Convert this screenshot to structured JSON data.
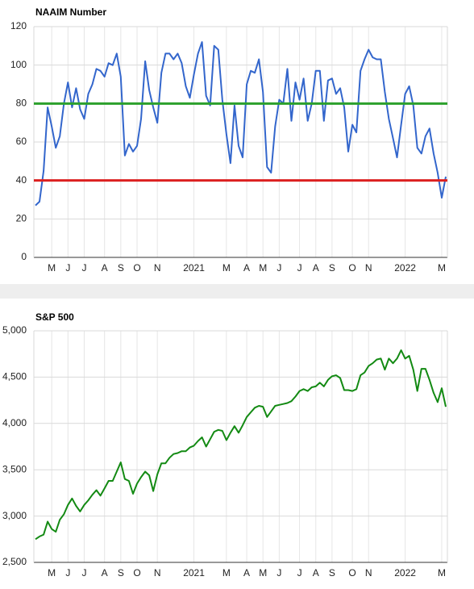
{
  "chart_data": [
    {
      "type": "line",
      "title": "NAAIM Number",
      "color": "#3366cc",
      "categories": [
        null,
        null,
        null,
        null,
        "M",
        null,
        null,
        null,
        "J",
        null,
        null,
        null,
        "J",
        null,
        null,
        null,
        null,
        "A",
        null,
        null,
        null,
        "S",
        null,
        null,
        null,
        "O",
        null,
        null,
        null,
        null,
        "N",
        null,
        null,
        null,
        null,
        null,
        null,
        null,
        null,
        "2021",
        null,
        null,
        null,
        null,
        null,
        null,
        null,
        "M",
        null,
        null,
        null,
        null,
        "A",
        null,
        null,
        null,
        "M",
        null,
        null,
        null,
        "J",
        null,
        null,
        null,
        null,
        "J",
        null,
        null,
        null,
        "A",
        null,
        null,
        null,
        "S",
        null,
        null,
        null,
        null,
        "O",
        null,
        null,
        null,
        "N",
        null,
        null,
        null,
        null,
        null,
        null,
        null,
        null,
        "2022",
        null,
        null,
        null,
        null,
        null,
        null,
        null,
        null,
        "M",
        null
      ],
      "values": [
        27,
        29,
        45,
        78,
        68,
        57,
        63,
        80,
        91,
        78,
        88,
        77,
        72,
        85,
        90,
        98,
        97,
        94,
        101,
        100,
        106,
        94,
        53,
        59,
        55,
        58,
        72,
        102,
        87,
        78,
        70,
        96,
        106,
        106,
        103,
        106,
        101,
        89,
        83,
        95,
        106,
        112,
        84,
        79,
        110,
        108,
        82,
        64,
        49,
        79,
        58,
        52,
        90,
        97,
        96,
        103,
        86,
        47,
        44,
        68,
        82,
        80,
        98,
        71,
        91,
        82,
        93,
        71,
        80,
        97,
        97,
        71,
        92,
        93,
        85,
        88,
        78,
        55,
        69,
        65,
        97,
        103,
        108,
        104,
        103,
        103,
        86,
        72,
        62,
        52,
        69,
        85,
        89,
        79,
        57,
        54,
        63,
        67,
        54,
        44,
        31,
        42
      ],
      "ylim": [
        0,
        120
      ],
      "yticks": [
        0,
        20,
        40,
        60,
        80,
        100,
        120
      ],
      "grid": true,
      "reference_lines": [
        {
          "value": 80,
          "color": "#2ca02c"
        },
        {
          "value": 40,
          "color": "#dc2020"
        }
      ]
    },
    {
      "type": "line",
      "title": "S&P 500",
      "color": "#138a13",
      "categories": [
        null,
        null,
        null,
        null,
        "M",
        null,
        null,
        null,
        "J",
        null,
        null,
        null,
        "J",
        null,
        null,
        null,
        null,
        "A",
        null,
        null,
        null,
        "S",
        null,
        null,
        null,
        "O",
        null,
        null,
        null,
        null,
        "N",
        null,
        null,
        null,
        null,
        null,
        null,
        null,
        null,
        "2021",
        null,
        null,
        null,
        null,
        null,
        null,
        null,
        "M",
        null,
        null,
        null,
        null,
        "A",
        null,
        null,
        null,
        "M",
        null,
        null,
        null,
        "J",
        null,
        null,
        null,
        null,
        "J",
        null,
        null,
        null,
        "A",
        null,
        null,
        null,
        "S",
        null,
        null,
        null,
        null,
        "O",
        null,
        null,
        null,
        "N",
        null,
        null,
        null,
        null,
        null,
        null,
        null,
        null,
        "2022",
        null,
        null,
        null,
        null,
        null,
        null,
        null,
        null,
        "M",
        null
      ],
      "values": [
        2750,
        2780,
        2800,
        2940,
        2860,
        2830,
        2960,
        3020,
        3120,
        3190,
        3110,
        3050,
        3120,
        3170,
        3230,
        3280,
        3220,
        3300,
        3380,
        3380,
        3480,
        3580,
        3400,
        3380,
        3240,
        3350,
        3420,
        3480,
        3440,
        3270,
        3450,
        3570,
        3570,
        3630,
        3670,
        3680,
        3700,
        3700,
        3740,
        3760,
        3810,
        3850,
        3750,
        3830,
        3910,
        3930,
        3920,
        3820,
        3900,
        3970,
        3900,
        3980,
        4070,
        4120,
        4170,
        4190,
        4180,
        4070,
        4130,
        4190,
        4200,
        4210,
        4220,
        4240,
        4290,
        4350,
        4370,
        4350,
        4390,
        4400,
        4440,
        4400,
        4470,
        4510,
        4520,
        4490,
        4360,
        4360,
        4350,
        4370,
        4520,
        4550,
        4620,
        4650,
        4690,
        4700,
        4580,
        4700,
        4650,
        4700,
        4790,
        4700,
        4730,
        4580,
        4350,
        4590,
        4590,
        4470,
        4330,
        4230,
        4380,
        4180
      ],
      "ylim": [
        2500,
        5000
      ],
      "yticks": [
        {
          "value": 2500,
          "label": "2,500"
        },
        {
          "value": 3000,
          "label": "3,000"
        },
        {
          "value": 3500,
          "label": "3,500"
        },
        {
          "value": 4000,
          "label": "4,000"
        },
        {
          "value": 4500,
          "label": "4,500"
        },
        {
          "value": 5000,
          "label": "5,000"
        }
      ],
      "grid": true
    }
  ]
}
